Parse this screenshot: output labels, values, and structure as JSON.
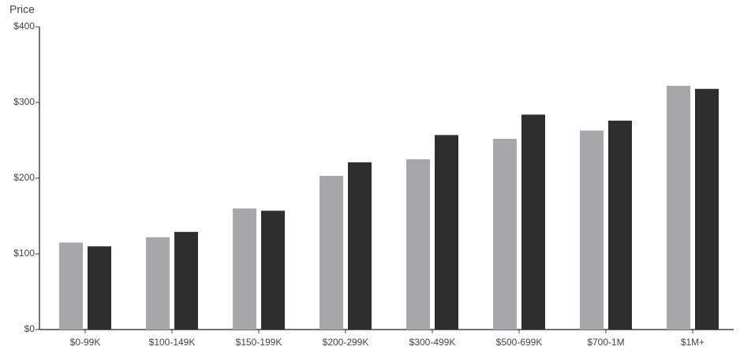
{
  "chart_data": {
    "type": "bar",
    "y_label": "Price",
    "categories": [
      "$0-99K",
      "$100-149K",
      "$150-199K",
      "$200-299K",
      "$300-499K",
      "$500-699K",
      "$700-1M",
      "$1M+"
    ],
    "series": [
      {
        "color": "#a7a7aa",
        "values": [
          115,
          122,
          160,
          203,
          225,
          252,
          263,
          322
        ]
      },
      {
        "color": "#2e2e2e",
        "values": [
          110,
          129,
          157,
          221,
          257,
          284,
          276,
          318
        ]
      }
    ],
    "ylim": [
      0,
      400
    ],
    "yticks": [
      {
        "value": 0,
        "label": "$0"
      },
      {
        "value": 100,
        "label": "$100"
      },
      {
        "value": 200,
        "label": "$200"
      },
      {
        "value": 300,
        "label": "$300"
      },
      {
        "value": 400,
        "label": "$400"
      }
    ]
  }
}
